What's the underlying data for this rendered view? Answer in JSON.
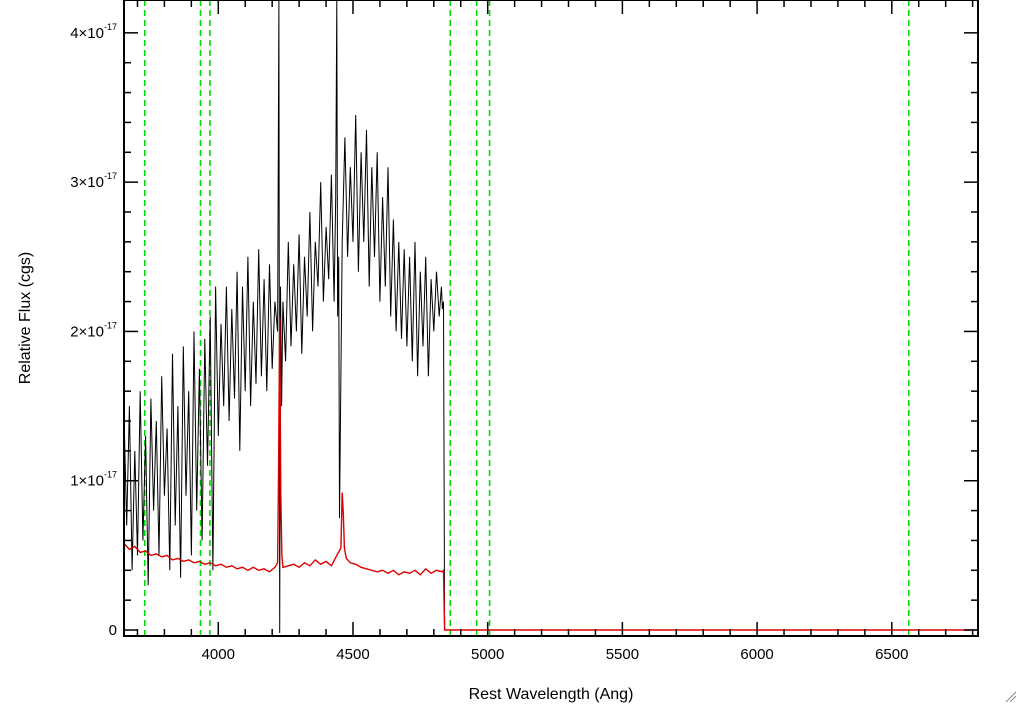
{
  "chart_data": {
    "type": "line",
    "title": "",
    "xlabel": "Rest Wavelength (Ang)",
    "ylabel": "Relative Flux (cgs)",
    "xlim": [
      3650,
      6820
    ],
    "ylim": [
      -4e-19,
      4.22e-17
    ],
    "x_ticks": [
      4000,
      4500,
      5000,
      5500,
      6000,
      6500
    ],
    "x_tick_labels": [
      "4000",
      "4500",
      "5000",
      "5500",
      "6000",
      "6500"
    ],
    "y_ticks": [
      0,
      1e-17,
      2e-17,
      3e-17,
      4e-17
    ],
    "y_tick_labels": [
      {
        "mant": "0",
        "exp": ""
      },
      {
        "mant": "1×10",
        "exp": "-17"
      },
      {
        "mant": "2×10",
        "exp": "-17"
      },
      {
        "mant": "3×10",
        "exp": "-17"
      },
      {
        "mant": "4×10",
        "exp": "-17"
      }
    ],
    "vertical_lines": {
      "color": "#00dd00",
      "style": "dashed",
      "x": [
        3727,
        3934,
        3969,
        4861,
        4959,
        5007,
        6563
      ]
    },
    "series": [
      {
        "color": "#000000",
        "x": [
          3650,
          3660,
          3670,
          3680,
          3690,
          3700,
          3710,
          3720,
          3730,
          3740,
          3750,
          3760,
          3770,
          3780,
          3790,
          3800,
          3810,
          3820,
          3830,
          3840,
          3850,
          3860,
          3870,
          3880,
          3890,
          3900,
          3910,
          3920,
          3930,
          3940,
          3950,
          3960,
          3970,
          3980,
          3990,
          4000,
          4010,
          4020,
          4030,
          4040,
          4050,
          4060,
          4070,
          4080,
          4090,
          4100,
          4110,
          4120,
          4130,
          4140,
          4150,
          4160,
          4170,
          4180,
          4190,
          4200,
          4210,
          4220,
          4225,
          4228,
          4231,
          4235,
          4240,
          4250,
          4260,
          4270,
          4280,
          4290,
          4300,
          4310,
          4320,
          4330,
          4340,
          4350,
          4360,
          4370,
          4380,
          4390,
          4400,
          4410,
          4420,
          4430,
          4436,
          4440,
          4443,
          4447,
          4450,
          4460,
          4470,
          4480,
          4490,
          4500,
          4510,
          4520,
          4530,
          4540,
          4550,
          4560,
          4570,
          4580,
          4590,
          4600,
          4610,
          4620,
          4630,
          4640,
          4650,
          4660,
          4670,
          4680,
          4690,
          4700,
          4710,
          4720,
          4730,
          4740,
          4750,
          4760,
          4770,
          4780,
          4790,
          4800,
          4810,
          4820,
          4828,
          4832,
          4836,
          4840,
          4860,
          5200,
          5800,
          6400,
          6820
        ],
        "y": [
          1.45e-17,
          7e-18,
          1.5e-17,
          4e-18,
          1.2e-17,
          5e-18,
          1.6e-17,
          6e-18,
          1.3e-17,
          3e-18,
          1.55e-17,
          8e-18,
          1.4e-17,
          5e-18,
          1.7e-17,
          9e-18,
          1.35e-17,
          4e-18,
          1.85e-17,
          7e-18,
          1.5e-17,
          3.5e-18,
          1.9e-17,
          9e-18,
          1.6e-17,
          5e-18,
          2e-17,
          8e-18,
          1.75e-17,
          6e-18,
          1.95e-17,
          1.1e-17,
          2.1e-17,
          4e-18,
          2.3e-17,
          1.3e-17,
          2.05e-17,
          1.5e-17,
          2.3e-17,
          1.4e-17,
          2.15e-17,
          1.55e-17,
          2.4e-17,
          1.2e-17,
          2.3e-17,
          1.6e-17,
          2.5e-17,
          1.5e-17,
          2.2e-17,
          1.65e-17,
          2.55e-17,
          1.7e-17,
          2.35e-17,
          1.6e-17,
          2.45e-17,
          1.75e-17,
          2.2e-17,
          2e-17,
          4.22e-17,
          -2e-19,
          2.3e-17,
          1.5e-17,
          2.2e-17,
          1.8e-17,
          2.6e-17,
          1.9e-17,
          2.45e-17,
          2e-17,
          2.65e-17,
          1.85e-17,
          2.5e-17,
          2.1e-17,
          2.8e-17,
          2e-17,
          2.6e-17,
          2.3e-17,
          3e-17,
          2.2e-17,
          2.7e-17,
          2.35e-17,
          3.05e-17,
          2.2e-17,
          2.9e-17,
          4.22e-17,
          2.1e-17,
          2.5e-17,
          7.5e-18,
          2.6e-17,
          3.3e-17,
          2.5e-17,
          3.1e-17,
          2.6e-17,
          3.45e-17,
          2.4e-17,
          3.2e-17,
          2.6e-17,
          3.35e-17,
          2.3e-17,
          3.1e-17,
          2.5e-17,
          3.2e-17,
          2.2e-17,
          2.9e-17,
          2.3e-17,
          3.1e-17,
          2.1e-17,
          2.75e-17,
          2e-17,
          2.6e-17,
          1.95e-17,
          2.55e-17,
          1.9e-17,
          2.5e-17,
          1.8e-17,
          2.6e-17,
          1.7e-17,
          2.4e-17,
          1.9e-17,
          2.5e-17,
          1.7e-17,
          2.35e-17,
          2e-17,
          2.4e-17,
          2.1e-17,
          2.3e-17,
          2.15e-17,
          2.2e-17,
          0.0,
          0.0,
          0.0,
          0.0,
          0.0,
          0.0
        ]
      },
      {
        "color": "#dd0000",
        "x": [
          3650,
          3670,
          3690,
          3710,
          3730,
          3750,
          3770,
          3790,
          3810,
          3830,
          3850,
          3870,
          3890,
          3910,
          3930,
          3950,
          3970,
          3990,
          4010,
          4030,
          4050,
          4070,
          4090,
          4110,
          4130,
          4150,
          4170,
          4190,
          4210,
          4220,
          4224,
          4228,
          4232,
          4236,
          4240,
          4260,
          4280,
          4300,
          4320,
          4340,
          4360,
          4380,
          4400,
          4420,
          4440,
          4455,
          4460,
          4464,
          4468,
          4475,
          4490,
          4510,
          4530,
          4550,
          4570,
          4590,
          4610,
          4630,
          4650,
          4670,
          4690,
          4710,
          4730,
          4750,
          4770,
          4790,
          4810,
          4830,
          4836,
          4840,
          4860,
          5200,
          5800,
          6400,
          6820
        ],
        "y": [
          5.8e-18,
          5.4e-18,
          5.6e-18,
          5.2e-18,
          5.3e-18,
          5e-18,
          5.1e-18,
          4.9e-18,
          5e-18,
          4.7e-18,
          4.8e-18,
          4.6e-18,
          4.7e-18,
          4.5e-18,
          4.6e-18,
          4.4e-18,
          4.5e-18,
          4.3e-18,
          4.4e-18,
          4.2e-18,
          4.3e-18,
          4.1e-18,
          4.2e-18,
          4e-18,
          4.2e-18,
          4e-18,
          4.1e-18,
          3.9e-18,
          4.2e-18,
          4.5e-18,
          1.1e-17,
          2.1e-17,
          9e-18,
          5e-18,
          4.2e-18,
          4.3e-18,
          4.4e-18,
          4.2e-18,
          4.5e-18,
          4.3e-18,
          4.7e-18,
          4.4e-18,
          4.6e-18,
          4.3e-18,
          5e-18,
          5.5e-18,
          9.2e-18,
          7.8e-18,
          5.5e-18,
          4.8e-18,
          4.5e-18,
          4.4e-18,
          4.2e-18,
          4.1e-18,
          4e-18,
          3.9e-18,
          4e-18,
          3.8e-18,
          4e-18,
          3.7e-18,
          3.9e-18,
          3.8e-18,
          4e-18,
          3.7e-18,
          4.1e-18,
          3.8e-18,
          4e-18,
          3.9e-18,
          4e-18,
          0.0,
          0.0,
          0.0,
          0.0,
          0.0,
          0.0
        ]
      }
    ]
  }
}
